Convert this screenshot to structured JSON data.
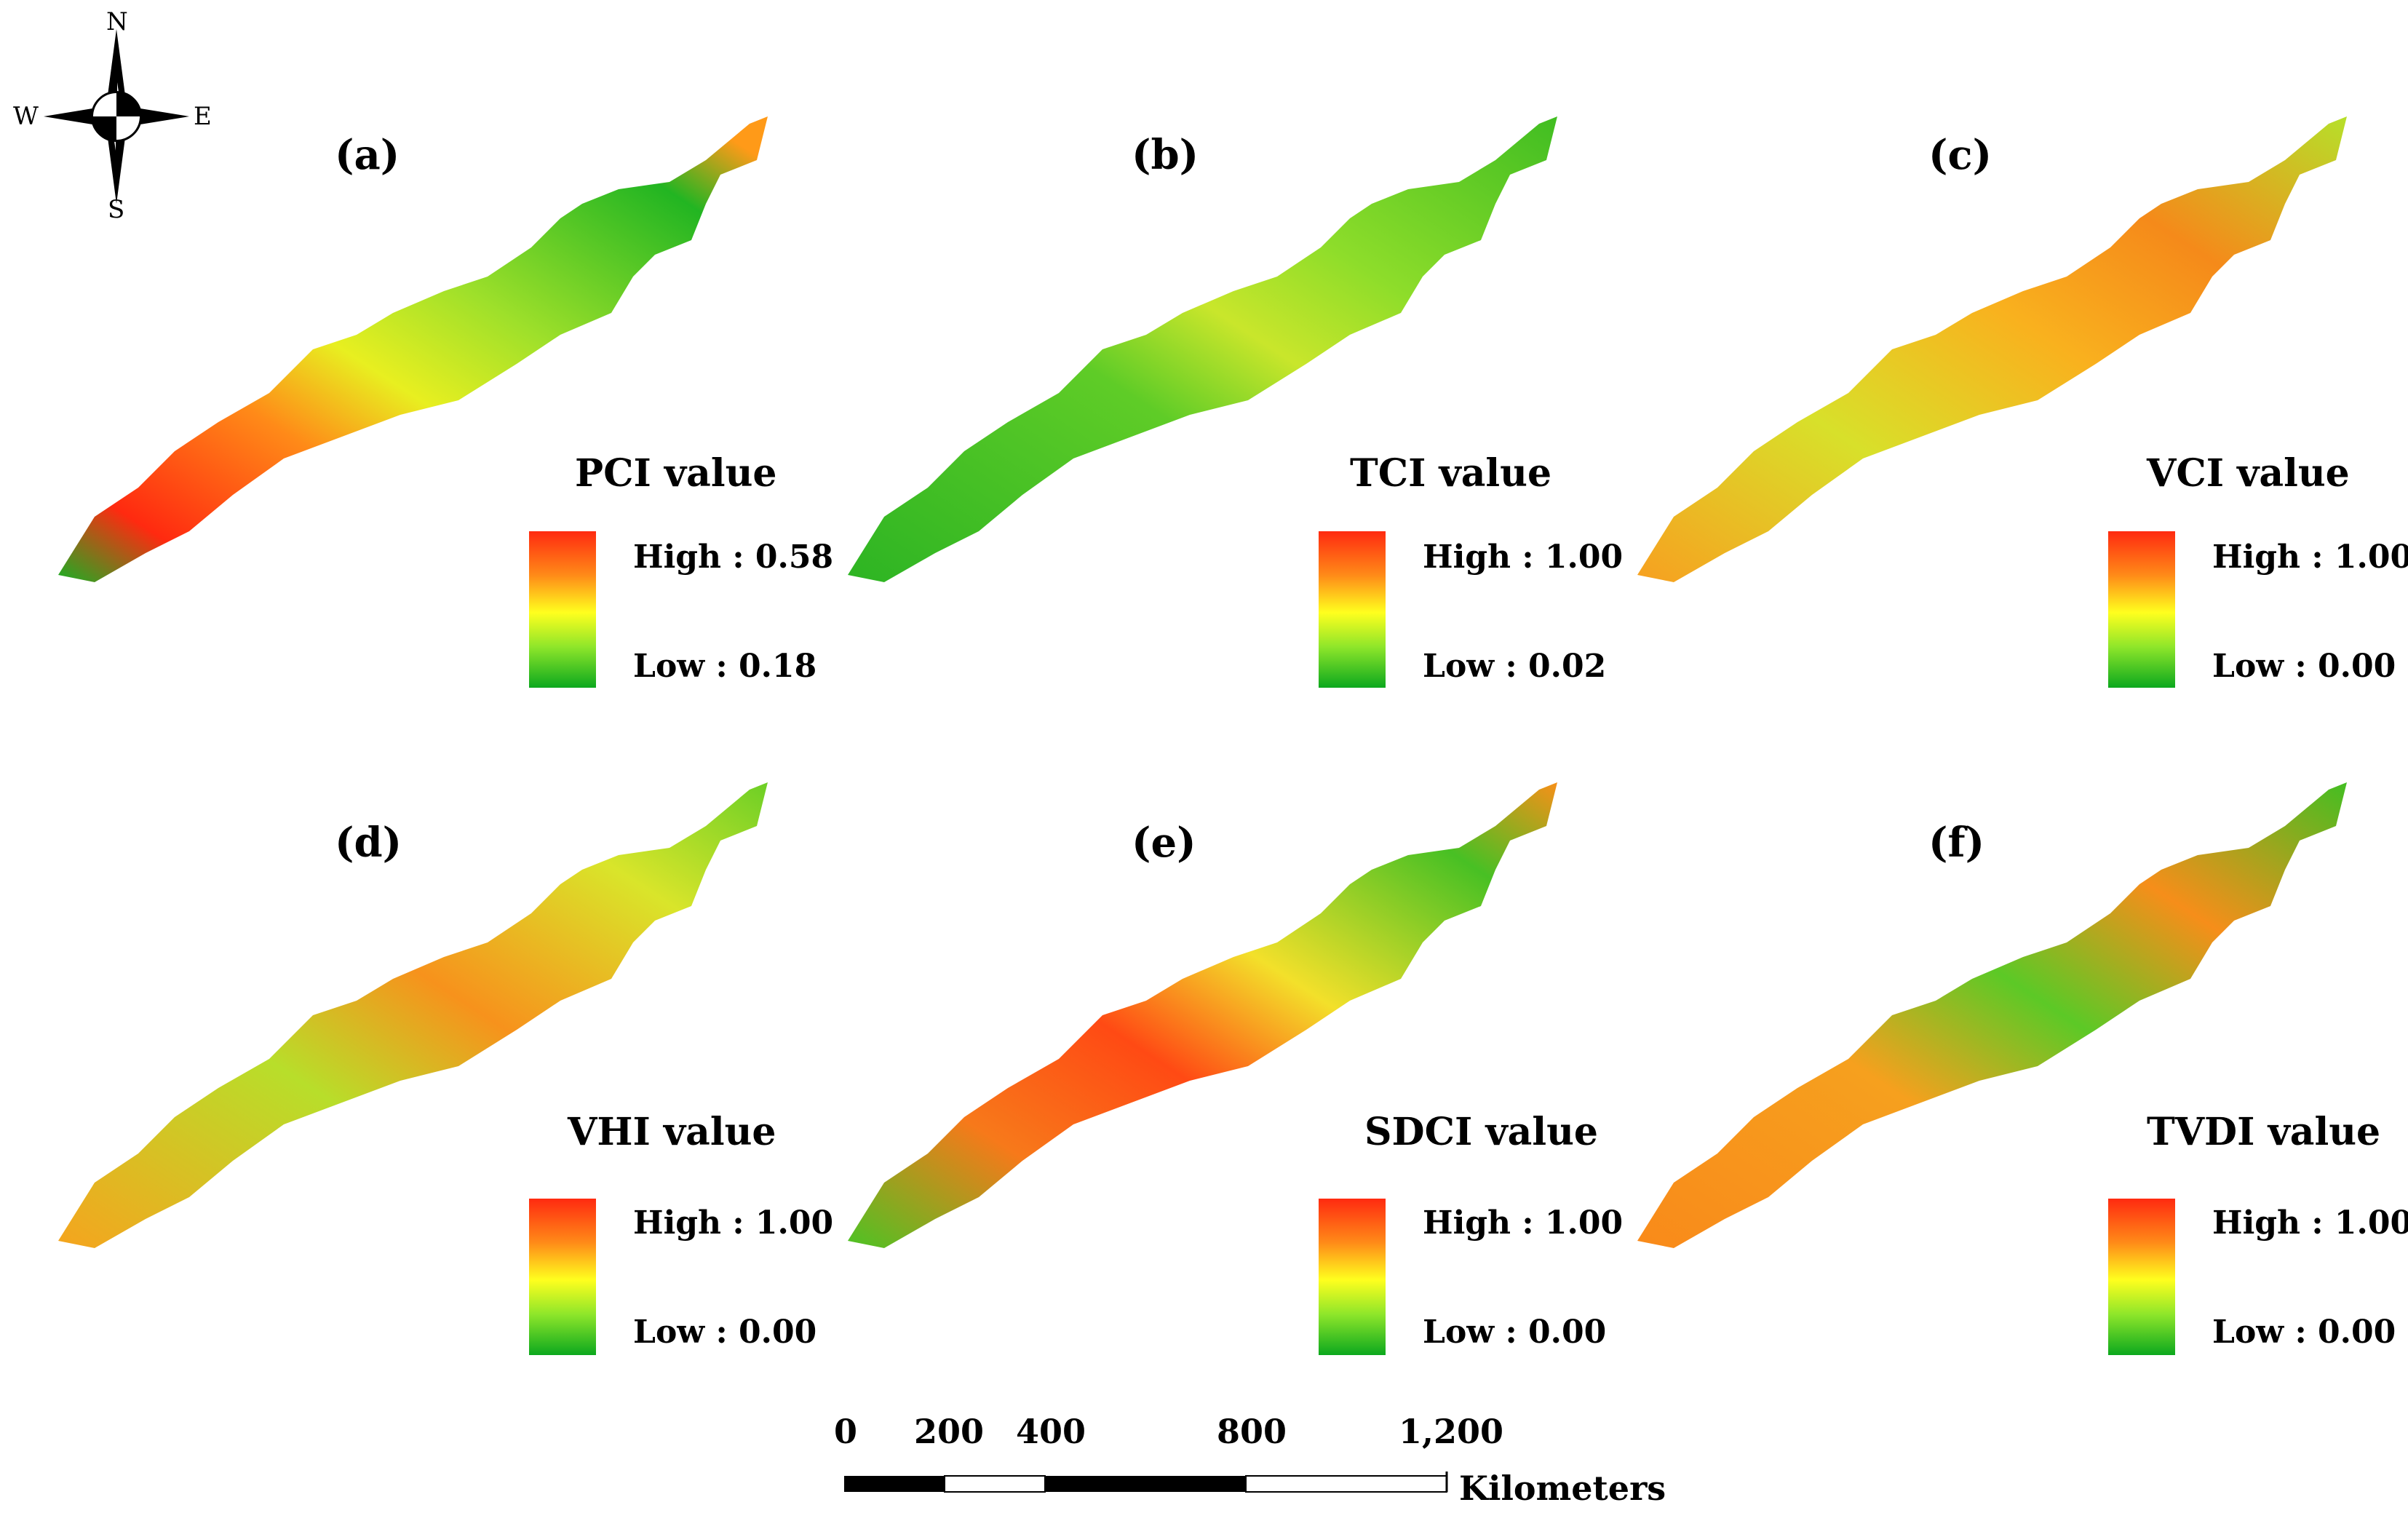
{
  "compass": {
    "north": "N",
    "south": "S",
    "east": "E",
    "west": "W"
  },
  "colors": {
    "high": "#ff2a10",
    "mid_high": "#ff8a18",
    "mid": "#ffff1e",
    "mid_low": "#8ee62a",
    "low": "#0ca81e"
  },
  "panels": [
    {
      "label": "(a)",
      "legend_title": "PCI value",
      "high": "High : 0.58",
      "low": "Low : 0.18",
      "dominant": "mixed-green-south-red"
    },
    {
      "label": "(b)",
      "legend_title": "TCI value",
      "high": "High : 1.00",
      "low": "Low : 0.02",
      "dominant": "green"
    },
    {
      "label": "(c)",
      "legend_title": "VCI value",
      "high": "High : 1.00",
      "low": "Low : 0.00",
      "dominant": "yellow-orange"
    },
    {
      "label": "(d)",
      "legend_title": "VHI value",
      "high": "High : 1.00",
      "low": "Low : 0.00",
      "dominant": "yellow-orange"
    },
    {
      "label": "(e)",
      "legend_title": "SDCI value",
      "high": "High : 1.00",
      "low": "Low : 0.00",
      "dominant": "orange-south"
    },
    {
      "label": "(f)",
      "legend_title": "TVDI value",
      "high": "High : 1.00",
      "low": "Low : 0.00",
      "dominant": "orange-green"
    }
  ],
  "scale_bar": {
    "ticks": [
      "0",
      "200",
      "400",
      "800",
      "1,200"
    ],
    "unit": "Kilometers"
  }
}
